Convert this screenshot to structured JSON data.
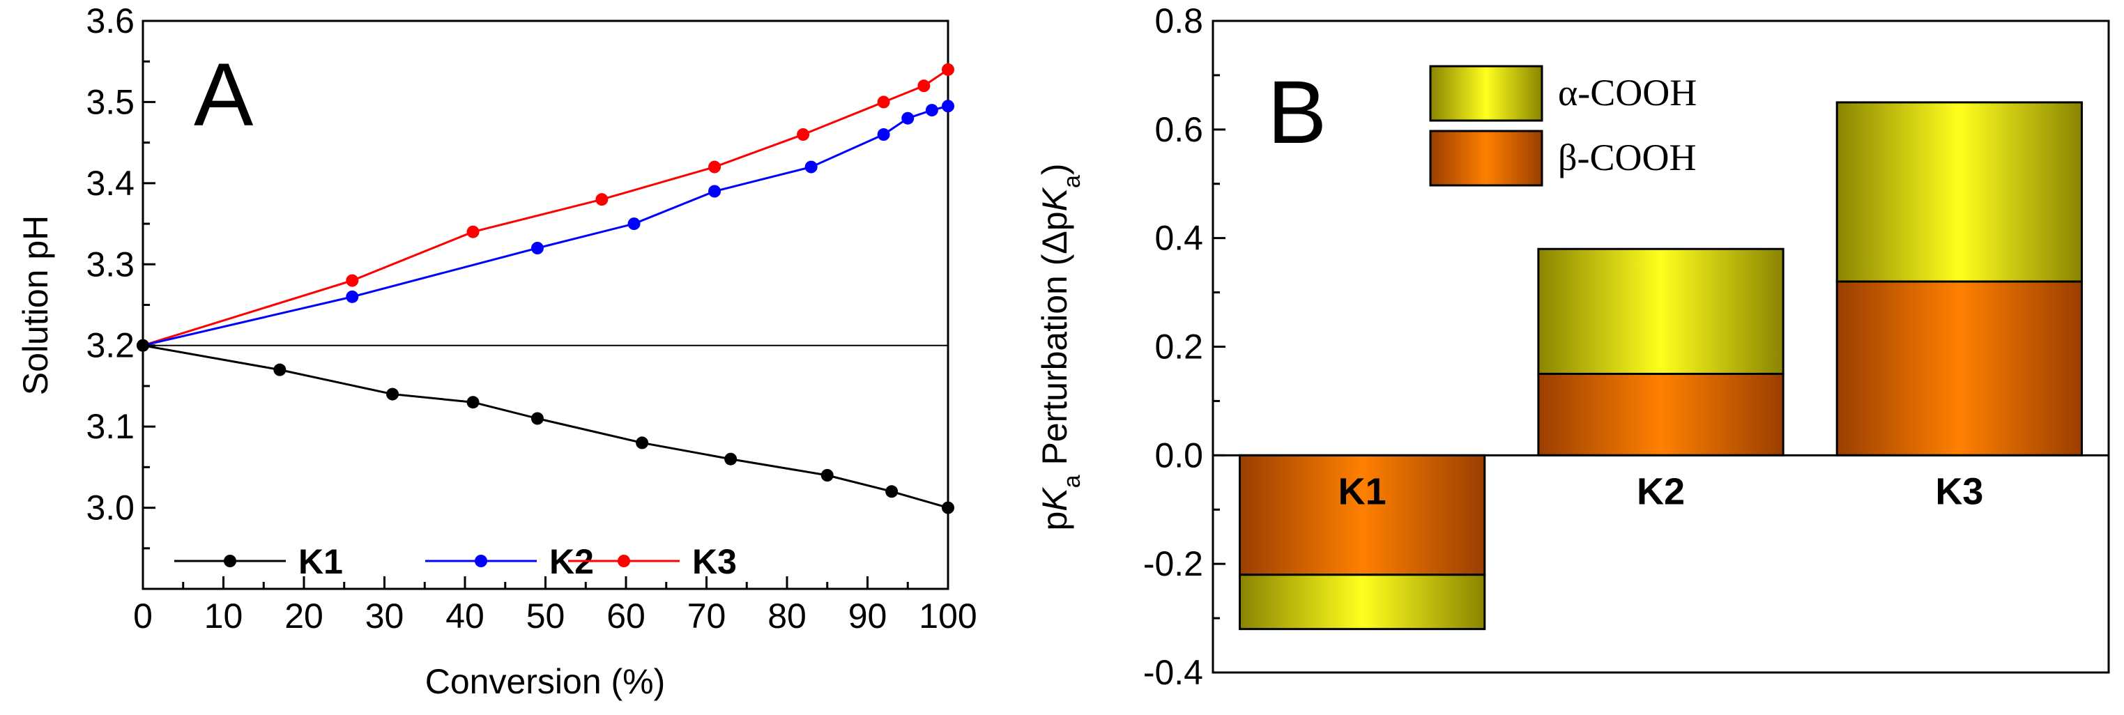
{
  "chart_data": [
    {
      "panel": "A",
      "type": "line",
      "xlabel": "Conversion (%)",
      "ylabel": "Solution pH",
      "xlim": [
        0,
        100
      ],
      "ylim": [
        2.9,
        3.6
      ],
      "xticks": [
        "0",
        "10",
        "20",
        "30",
        "40",
        "50",
        "60",
        "70",
        "80",
        "90",
        "100"
      ],
      "yticks": [
        "3.0",
        "3.1",
        "3.2",
        "3.3",
        "3.4",
        "3.5",
        "3.6"
      ],
      "reference_line_y": 3.2,
      "series": [
        {
          "name": "K1",
          "color": "#000000",
          "x": [
            0,
            17,
            31,
            41,
            49,
            62,
            73,
            85,
            93,
            100
          ],
          "y": [
            3.2,
            3.17,
            3.14,
            3.13,
            3.11,
            3.08,
            3.06,
            3.04,
            3.02,
            3.0
          ]
        },
        {
          "name": "K2",
          "color": "#0000ff",
          "x": [
            0,
            26,
            49,
            61,
            71,
            83,
            92,
            95,
            98,
            100
          ],
          "y": [
            3.2,
            3.26,
            3.32,
            3.35,
            3.39,
            3.42,
            3.46,
            3.48,
            3.49,
            3.495
          ]
        },
        {
          "name": "K3",
          "color": "#ff0000",
          "x": [
            0,
            26,
            41,
            57,
            71,
            82,
            92,
            97,
            100
          ],
          "y": [
            3.2,
            3.28,
            3.34,
            3.38,
            3.42,
            3.46,
            3.5,
            3.52,
            3.54
          ]
        }
      ]
    },
    {
      "panel": "B",
      "type": "bar",
      "stacked": true,
      "ylabel_parts": [
        "p",
        "K",
        "a",
        " Perturbation (Δp",
        "K",
        "a",
        ")"
      ],
      "ylim": [
        -0.4,
        0.8
      ],
      "yticks": [
        "-0.4",
        "-0.2",
        "0.0",
        "0.2",
        "0.4",
        "0.6",
        "0.8"
      ],
      "categories": [
        "K1",
        "K2",
        "K3"
      ],
      "series": [
        {
          "name": "β-COOH",
          "values": [
            -0.22,
            0.15,
            0.32
          ]
        },
        {
          "name": "α-COOH",
          "values": [
            -0.1,
            0.23,
            0.33
          ]
        }
      ]
    }
  ]
}
